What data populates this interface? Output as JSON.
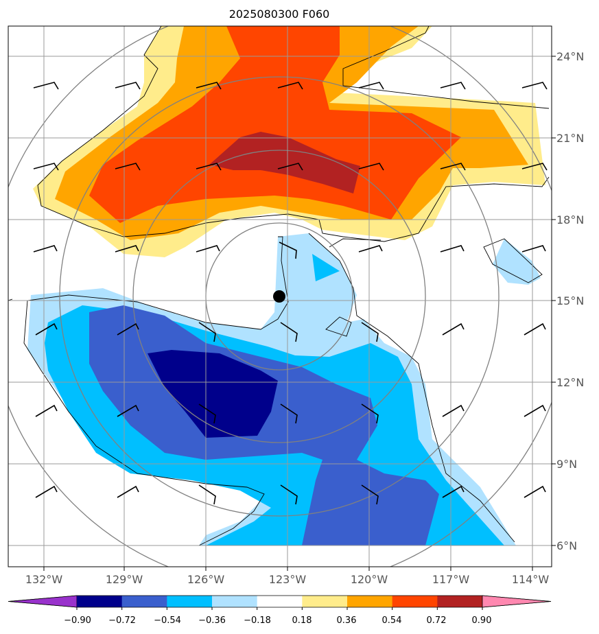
{
  "title": "2025080300 F060",
  "lon_ticks": [
    "132°W",
    "129°W",
    "126°W",
    "123°W",
    "120°W",
    "117°W",
    "114°W"
  ],
  "lat_ticks": [
    "24°N",
    "21°N",
    "18°N",
    "15°N",
    "12°N",
    "9°N",
    "6°N"
  ],
  "colorbar": {
    "labels": [
      "−0.90",
      "−0.72",
      "−0.54",
      "−0.36",
      "−0.18",
      "0.18",
      "0.36",
      "0.54",
      "0.72",
      "0.90"
    ],
    "colors": [
      "#9932cc",
      "#00008b",
      "#3a5fcd",
      "#00bfff",
      "#b0e2ff",
      "#ffffff",
      "#ffec8b",
      "#ffa500",
      "#ff4500",
      "#b22222",
      "#ff88b0"
    ]
  },
  "center_marker": {
    "lon": -123.3,
    "lat": 15.15
  },
  "field_colors": {
    "neg090": "#00008b",
    "neg072": "#3a5fcd",
    "neg054": "#00bfff",
    "neg036": "#b0e2ff",
    "pos018": "#ffec8b",
    "pos036": "#ffa500",
    "pos054": "#ff4500",
    "pos072": "#b22222"
  }
}
